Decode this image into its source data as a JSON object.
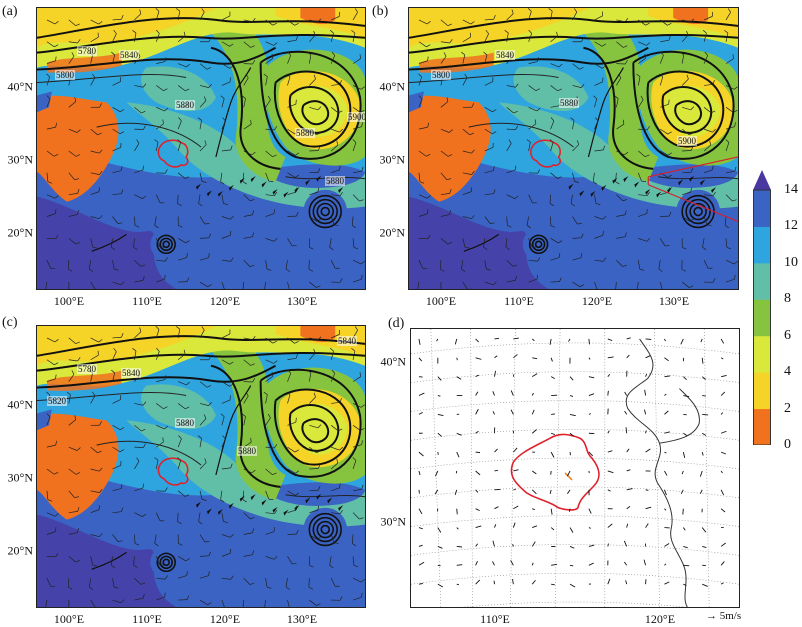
{
  "panels": {
    "a": {
      "label": "(a)",
      "contour_labels": [
        "5780",
        "5800",
        "5840",
        "5880",
        "5880",
        "5900",
        "5880"
      ]
    },
    "b": {
      "label": "(b)",
      "contour_labels": [
        "5800",
        "5840",
        "5880",
        "5900"
      ]
    },
    "c": {
      "label": "(c)",
      "contour_labels": [
        "5780",
        "5820",
        "5840",
        "5880",
        "5880",
        "5840"
      ]
    },
    "d": {
      "label": "(d)"
    }
  },
  "lat_labels_top": [
    "40°N",
    "30°N",
    "20°N"
  ],
  "lon_labels_top": [
    "100°E",
    "110°E",
    "120°E",
    "130°E"
  ],
  "lat_labels_d": [
    "40°N",
    "30°N"
  ],
  "lon_labels_d": [
    "110°E",
    "120°E"
  ],
  "colorbar": {
    "ticks": [
      "0",
      "2",
      "4",
      "6",
      "8",
      "10",
      "12",
      "14"
    ],
    "colors": [
      "#f0711e",
      "#f5d327",
      "#d9e83a",
      "#86c440",
      "#61bfa8",
      "#2fa5e0",
      "#3a63c4",
      "#4a37a0"
    ]
  },
  "scale": {
    "label": "5m/s"
  }
}
